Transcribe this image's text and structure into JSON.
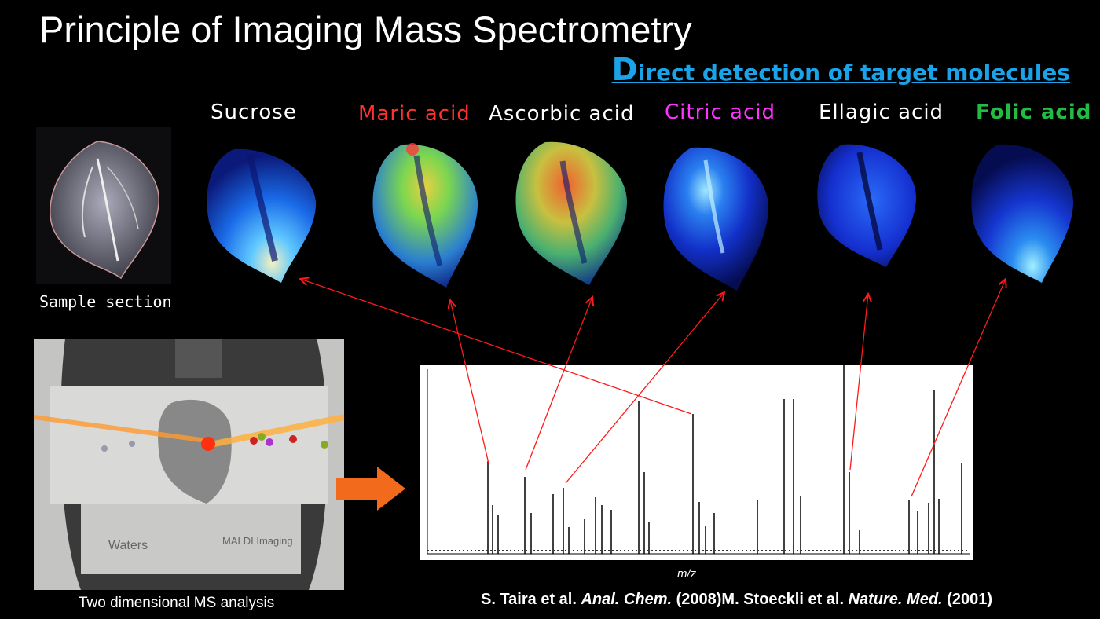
{
  "title": "Principle of Imaging Mass Spectrometry",
  "subtitle": {
    "first_letter": "D",
    "rest": "irect detection of target molecules",
    "color": "#1aa3e8"
  },
  "molecules": [
    {
      "label": "Sucrose",
      "color": "#ffffff"
    },
    {
      "label": "Maric acid",
      "color": "#ff3030"
    },
    {
      "label": "Ascorbic acid",
      "color": "#ffffff"
    },
    {
      "label": "Citric acid",
      "color": "#ff33ff"
    },
    {
      "label": "Ellagic acid",
      "color": "#ffffff"
    },
    {
      "label": "Folic acid",
      "color": "#22bb44"
    }
  ],
  "sample_label": "Sample section",
  "instrument": {
    "caption": "Two dimensional MS analysis",
    "plate_text": [
      "Waters",
      "MALDI Imaging"
    ]
  },
  "spectrum": {
    "x_label": "m/z"
  },
  "citation": {
    "part1": "S. Taira et al. ",
    "journal1": "Anal. Chem.",
    "part2": " (2008)M. Stoeckli et al. ",
    "journal2": "Nature. Med.",
    "part3": " (2001)"
  },
  "colors": {
    "arrow": "#ff1a1a",
    "flow_arrow": "#f26a1b",
    "background": "#000000"
  }
}
